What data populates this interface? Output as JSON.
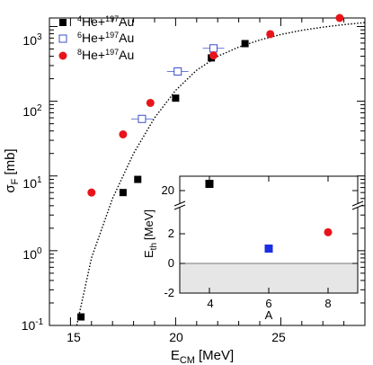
{
  "chart_data": [
    {
      "type": "scatter",
      "xlabel": "E",
      "xlabel_sub": "CM",
      "xlabel_unit": "[MeV]",
      "ylabel": "σ",
      "ylabel_sub": "F",
      "ylabel_unit": "[mb]",
      "y_scale": "log",
      "xlim": [
        14,
        29
      ],
      "ylim": [
        0.1,
        1300
      ],
      "xticks": [
        {
          "value": 15,
          "label": "15"
        },
        {
          "value": 20,
          "label": "20"
        },
        {
          "value": 25,
          "label": "25"
        }
      ],
      "yticks": [
        {
          "value": 0.1,
          "base": "10",
          "exp": "-1"
        },
        {
          "value": 1,
          "base": "10",
          "exp": "0"
        },
        {
          "value": 10,
          "base": "10",
          "exp": "1"
        },
        {
          "value": 100,
          "base": "10",
          "exp": "2"
        },
        {
          "value": 1000,
          "base": "10",
          "exp": "3"
        }
      ],
      "legend_position": "top-left",
      "series": [
        {
          "name": "4He+197Au",
          "label_parts": {
            "m1": "4",
            "el1": "He+",
            "m2": "197",
            "el2": "Au"
          },
          "marker": "filled-square",
          "color": "#000000",
          "points": [
            {
              "x": 15.5,
              "y": 0.13
            },
            {
              "x": 17.5,
              "y": 6
            },
            {
              "x": 18.2,
              "y": 9
            },
            {
              "x": 20.0,
              "y": 110
            },
            {
              "x": 21.7,
              "y": 380
            },
            {
              "x": 23.3,
              "y": 590
            }
          ]
        },
        {
          "name": "6He+197Au",
          "label_parts": {
            "m1": "6",
            "el1": "He+",
            "m2": "197",
            "el2": "Au"
          },
          "marker": "open-square",
          "color": "#3a4fc8",
          "points": [
            {
              "x": 18.4,
              "y": 58
            },
            {
              "x": 20.1,
              "y": 250
            },
            {
              "x": 21.8,
              "y": 510
            }
          ]
        },
        {
          "name": "8He+197Au",
          "label_parts": {
            "m1": "8",
            "el1": "He+",
            "m2": "197",
            "el2": "Au"
          },
          "marker": "filled-circle",
          "color": "#e8141b",
          "points": [
            {
              "x": 16.0,
              "y": 6
            },
            {
              "x": 17.5,
              "y": 36
            },
            {
              "x": 18.8,
              "y": 95
            },
            {
              "x": 21.8,
              "y": 410
            },
            {
              "x": 24.5,
              "y": 790
            },
            {
              "x": 27.8,
              "y": 1300
            }
          ]
        }
      ],
      "fit_curve": {
        "style": "dotted",
        "points": [
          {
            "x": 15.3,
            "y": 0.1
          },
          {
            "x": 16.0,
            "y": 0.8
          },
          {
            "x": 17.0,
            "y": 5
          },
          {
            "x": 18.0,
            "y": 20
          },
          {
            "x": 19.0,
            "y": 60
          },
          {
            "x": 20.0,
            "y": 140
          },
          {
            "x": 21.0,
            "y": 260
          },
          {
            "x": 22.0,
            "y": 400
          },
          {
            "x": 23.0,
            "y": 530
          },
          {
            "x": 24.0,
            "y": 660
          },
          {
            "x": 25.0,
            "y": 780
          },
          {
            "x": 26.0,
            "y": 890
          },
          {
            "x": 27.0,
            "y": 980
          },
          {
            "x": 28.0,
            "y": 1060
          },
          {
            "x": 29.0,
            "y": 1130
          }
        ]
      }
    },
    {
      "type": "scatter",
      "xlabel": "A",
      "ylabel": "E",
      "ylabel_sub": "th",
      "ylabel_unit": "[MeV]",
      "xlim": [
        3,
        9
      ],
      "axis_break": true,
      "yticks": [
        {
          "value": 20,
          "label": "20"
        },
        {
          "value": 2,
          "label": "2"
        },
        {
          "value": 0,
          "label": "0"
        },
        {
          "value": -2,
          "label": "-2"
        }
      ],
      "xticks": [
        {
          "value": 4,
          "label": "4"
        },
        {
          "value": 6,
          "label": "6"
        },
        {
          "value": 8,
          "label": "8"
        }
      ],
      "shaded_region": {
        "y_from": 0,
        "y_to": -2,
        "color": "#e6e6e6"
      },
      "points": [
        {
          "x": 4,
          "y": 25,
          "marker": "filled-square",
          "color": "#000000"
        },
        {
          "x": 6,
          "y": 1.0,
          "marker": "filled-square",
          "color": "#1a2fe0"
        },
        {
          "x": 8,
          "y": 2.1,
          "marker": "filled-circle",
          "color": "#e8141b"
        }
      ]
    }
  ]
}
